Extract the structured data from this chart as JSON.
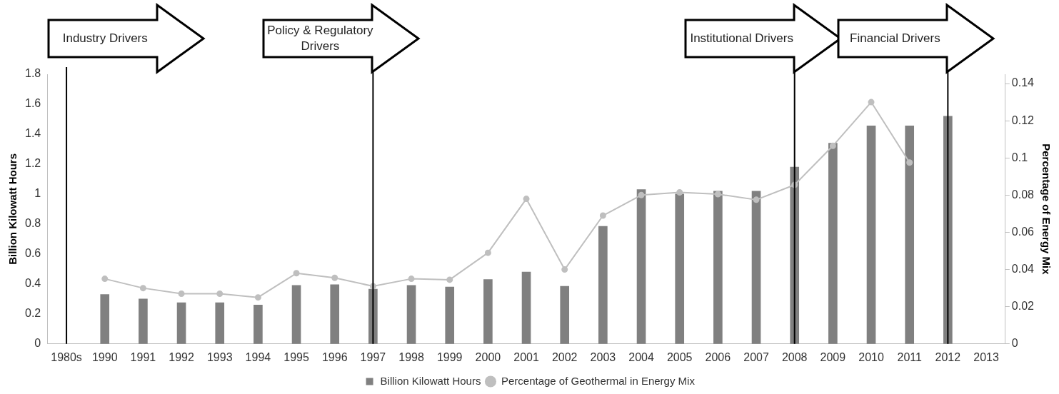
{
  "chart_data": {
    "type": "bar",
    "ylabel": "Billion Kilowatt Hours",
    "y2label": "Percentage of Energy Mix",
    "categories": [
      "1980s",
      "1990",
      "1991",
      "1992",
      "1993",
      "1994",
      "1995",
      "1996",
      "1997",
      "1998",
      "1999",
      "2000",
      "2001",
      "2002",
      "2003",
      "2004",
      "2005",
      "2006",
      "2007",
      "2008",
      "2009",
      "2010",
      "2011",
      "2012",
      "2013"
    ],
    "series": [
      {
        "name": "Billion Kilowatt Hours",
        "type": "bar",
        "color": "#808080",
        "values": [
          null,
          0.33,
          0.3,
          0.275,
          0.275,
          0.26,
          0.39,
          0.395,
          0.365,
          0.39,
          0.38,
          0.43,
          0.48,
          0.385,
          0.785,
          1.03,
          1.0,
          1.02,
          1.02,
          1.18,
          1.34,
          1.455,
          1.455,
          1.52,
          null
        ]
      },
      {
        "name": "Percentage of Geothermal in Energy Mix",
        "type": "line",
        "axis": "y2",
        "color": "#bfbfbf",
        "marker": "circle",
        "values": [
          null,
          0.035,
          0.03,
          0.027,
          0.027,
          0.025,
          0.038,
          0.0355,
          0.031,
          0.035,
          0.0345,
          0.049,
          0.078,
          0.04,
          0.069,
          0.08,
          0.0815,
          0.0805,
          0.0775,
          0.0855,
          0.1065,
          0.13,
          0.0975,
          null,
          null
        ]
      }
    ],
    "ylim": [
      0,
      1.8
    ],
    "yticks": [
      0,
      0.2,
      0.4,
      0.6,
      0.8,
      1,
      1.2,
      1.4,
      1.6,
      1.8
    ],
    "y2lim": [
      0,
      0.145
    ],
    "y2ticks": [
      0,
      0.02,
      0.04,
      0.06,
      0.08,
      0.1,
      0.12,
      0.14
    ],
    "ref_lines": [
      {
        "axis": "x",
        "value": "1980s",
        "label": "Industry Drivers",
        "color": "#000000"
      },
      {
        "axis": "x",
        "value": "1997",
        "label": "Policy & Regulatory Drivers",
        "color": "#000000"
      },
      {
        "axis": "x",
        "value": "2008",
        "label": "Institutional Drivers",
        "color": "#000000"
      },
      {
        "axis": "x",
        "value": "2012",
        "label": "Financial Drivers",
        "color": "#000000"
      }
    ],
    "legend": "bottom"
  }
}
